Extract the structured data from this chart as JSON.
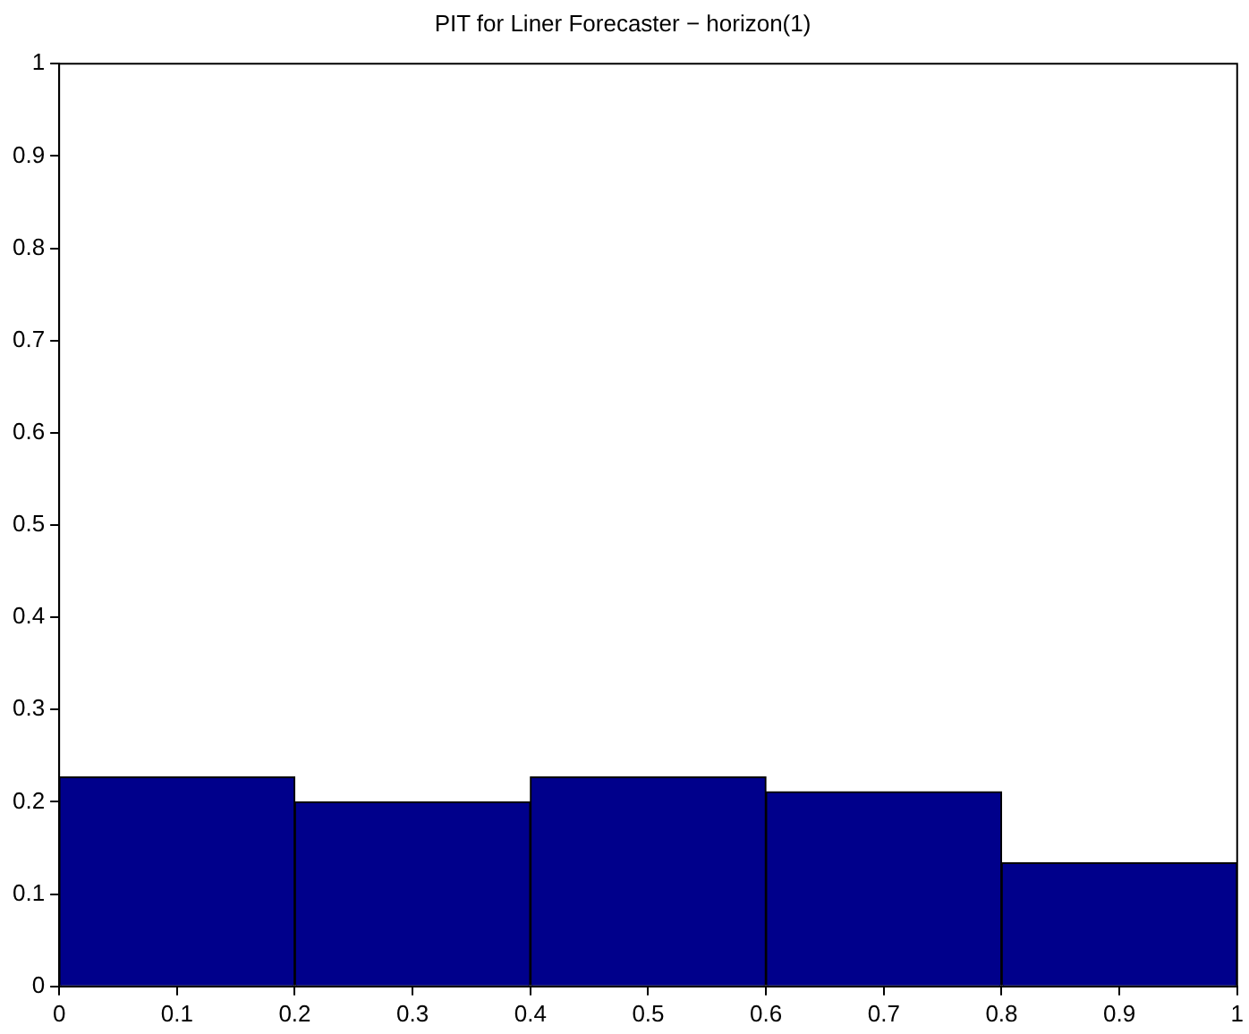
{
  "chart_data": {
    "type": "histogram",
    "title": "PIT for Liner Forecaster − horizon(1)",
    "bins": [
      0,
      0.2,
      0.4,
      0.6,
      0.8,
      1
    ],
    "values": [
      0.227,
      0.2,
      0.227,
      0.211,
      0.134
    ],
    "color": "#00008b",
    "xlim": [
      0,
      1
    ],
    "xticks": [
      0,
      0.1,
      0.2,
      0.3,
      0.4,
      0.5,
      0.6,
      0.7,
      0.8,
      0.9,
      1
    ],
    "ylim": [
      0,
      1
    ],
    "yticks": [
      0,
      0.1,
      0.2,
      0.3,
      0.4,
      0.5,
      0.6,
      0.7,
      0.8,
      0.9,
      1
    ],
    "grid": false,
    "legend": false
  }
}
